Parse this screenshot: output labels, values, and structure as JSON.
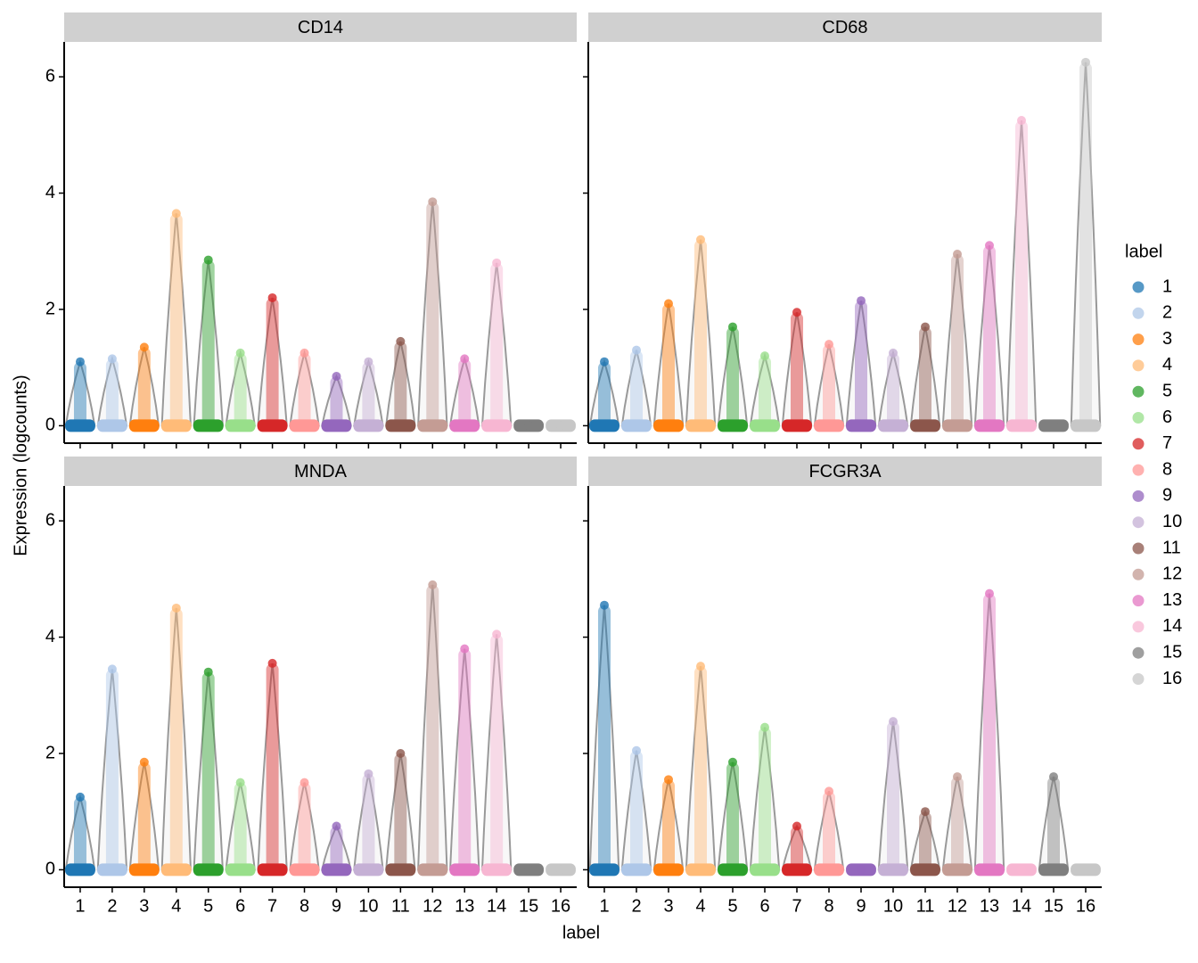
{
  "chart_data": {
    "type": "violin",
    "y_label": "Expression (logcounts)",
    "x_label": "label",
    "legend_title": "label",
    "categories": [
      "1",
      "2",
      "3",
      "4",
      "5",
      "6",
      "7",
      "8",
      "9",
      "10",
      "11",
      "12",
      "13",
      "14",
      "15",
      "16"
    ],
    "colors": [
      "#1f77b4",
      "#aec7e8",
      "#ff7f0e",
      "#ffbb78",
      "#2ca02c",
      "#98df8a",
      "#d62728",
      "#ff9896",
      "#9467bd",
      "#c5b0d5",
      "#8c564b",
      "#c49c94",
      "#e377c2",
      "#f7b6d2",
      "#7f7f7f",
      "#c7c7c7"
    ],
    "ylim": [
      -0.3,
      6.6
    ],
    "yticks": [
      0,
      2,
      4,
      6
    ],
    "panels": [
      {
        "title": "CD14",
        "values": [
          1.1,
          1.15,
          1.35,
          3.65,
          2.85,
          1.25,
          2.2,
          1.25,
          0.85,
          1.1,
          1.45,
          3.85,
          1.15,
          2.8,
          0,
          0
        ]
      },
      {
        "title": "CD68",
        "values": [
          1.1,
          1.3,
          2.1,
          3.2,
          1.7,
          1.2,
          1.95,
          1.4,
          2.15,
          1.25,
          1.7,
          2.95,
          3.1,
          5.25,
          0,
          6.25
        ]
      },
      {
        "title": "MNDA",
        "values": [
          1.25,
          3.45,
          1.85,
          4.5,
          3.4,
          1.5,
          3.55,
          1.5,
          0.75,
          1.65,
          2.0,
          4.9,
          3.8,
          4.05,
          0,
          0
        ]
      },
      {
        "title": "FCGR3A",
        "values": [
          4.55,
          2.05,
          1.55,
          3.5,
          1.85,
          2.45,
          0.75,
          1.35,
          0,
          2.55,
          1.0,
          1.6,
          4.75,
          0,
          1.6,
          0
        ]
      }
    ]
  }
}
